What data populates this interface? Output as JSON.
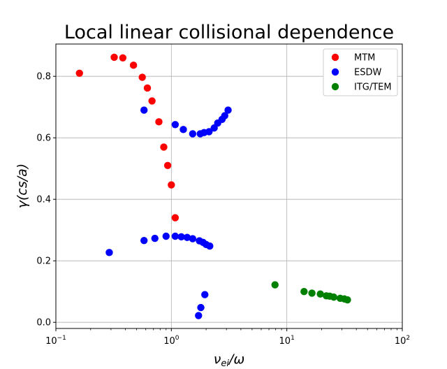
{
  "chart_data": {
    "type": "scatter",
    "title": "Local linear collisional dependence",
    "xlabel": "ν_ei/ω",
    "ylabel": "γ(cs/a)",
    "xscale": "log",
    "xlim": [
      0.1,
      100
    ],
    "ylim": [
      -0.02,
      0.905
    ],
    "grid": true,
    "legend_position": "top-right",
    "xticks": [
      {
        "value": 0.1,
        "base": "10",
        "exp": "−1"
      },
      {
        "value": 1,
        "base": "10",
        "exp": "0"
      },
      {
        "value": 10,
        "base": "10",
        "exp": "1"
      },
      {
        "value": 100,
        "base": "10",
        "exp": "2"
      }
    ],
    "yticks": [
      {
        "value": 0.0,
        "label": "0.0"
      },
      {
        "value": 0.2,
        "label": "0.2"
      },
      {
        "value": 0.4,
        "label": "0.4"
      },
      {
        "value": 0.6,
        "label": "0.6"
      },
      {
        "value": 0.8,
        "label": "0.8"
      }
    ],
    "series": [
      {
        "name": "MTM",
        "color": "#ff0000",
        "points": [
          [
            0.16,
            0.81
          ],
          [
            0.32,
            0.862
          ],
          [
            0.38,
            0.86
          ],
          [
            0.47,
            0.836
          ],
          [
            0.56,
            0.797
          ],
          [
            0.62,
            0.762
          ],
          [
            0.68,
            0.72
          ],
          [
            0.78,
            0.652
          ],
          [
            0.86,
            0.57
          ],
          [
            0.93,
            0.51
          ],
          [
            1.0,
            0.447
          ],
          [
            1.08,
            0.34
          ]
        ]
      },
      {
        "name": "ESDW",
        "color": "#0000ff",
        "points": [
          [
            0.58,
            0.69
          ],
          [
            1.08,
            0.643
          ],
          [
            1.27,
            0.627
          ],
          [
            1.53,
            0.613
          ],
          [
            1.78,
            0.613
          ],
          [
            1.92,
            0.617
          ],
          [
            2.12,
            0.62
          ],
          [
            2.35,
            0.632
          ],
          [
            2.52,
            0.648
          ],
          [
            2.75,
            0.66
          ],
          [
            2.9,
            0.672
          ],
          [
            3.1,
            0.69
          ],
          [
            0.29,
            0.227
          ],
          [
            0.58,
            0.266
          ],
          [
            0.72,
            0.273
          ],
          [
            0.9,
            0.28
          ],
          [
            1.08,
            0.28
          ],
          [
            1.22,
            0.278
          ],
          [
            1.37,
            0.276
          ],
          [
            1.53,
            0.272
          ],
          [
            1.75,
            0.265
          ],
          [
            1.88,
            0.26
          ],
          [
            2.0,
            0.253
          ],
          [
            2.15,
            0.248
          ],
          [
            1.72,
            0.022
          ],
          [
            1.8,
            0.048
          ],
          [
            1.95,
            0.09
          ]
        ]
      },
      {
        "name": "ITG/TEM",
        "color": "#008000",
        "points": [
          [
            7.9,
            0.122
          ],
          [
            14.1,
            0.1
          ],
          [
            16.5,
            0.095
          ],
          [
            19.5,
            0.092
          ],
          [
            22.0,
            0.086
          ],
          [
            23.5,
            0.085
          ],
          [
            25.5,
            0.082
          ],
          [
            29.0,
            0.078
          ],
          [
            31.5,
            0.076
          ],
          [
            33.5,
            0.073
          ]
        ]
      }
    ]
  }
}
